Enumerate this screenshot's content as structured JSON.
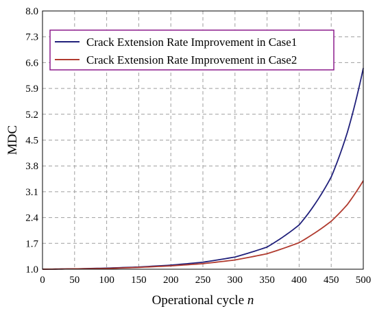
{
  "chart_data": {
    "type": "line",
    "title": "",
    "xlabel": "Operational cycle",
    "xlabel_var": "n",
    "ylabel": "MDC",
    "xlim": [
      0,
      500
    ],
    "ylim": [
      1.0,
      8.0
    ],
    "x_ticks": [
      0,
      50,
      100,
      150,
      200,
      250,
      300,
      350,
      400,
      450,
      500
    ],
    "y_ticks": [
      1.0,
      1.7,
      2.4,
      3.1,
      3.8,
      4.5,
      5.2,
      5.9,
      6.6,
      7.3,
      8.0
    ],
    "y_tick_labels": [
      "1.0",
      "1.7",
      "2.4",
      "3.1",
      "3.8",
      "4.5",
      "5.2",
      "5.9",
      "6.6",
      "7.3",
      "8.0"
    ],
    "grid": true,
    "legend_position": "top-left",
    "series": [
      {
        "name": "Crack Extension Rate Improvement in Case1",
        "color": "#1f1f7a",
        "x": [
          0,
          50,
          100,
          150,
          200,
          250,
          300,
          350,
          400,
          450,
          475,
          500
        ],
        "y": [
          1.0,
          1.01,
          1.03,
          1.06,
          1.11,
          1.19,
          1.33,
          1.6,
          2.2,
          3.5,
          4.7,
          6.45
        ]
      },
      {
        "name": "Crack Extension Rate Improvement in Case2",
        "color": "#b03a2e",
        "x": [
          0,
          50,
          100,
          150,
          200,
          250,
          300,
          350,
          400,
          450,
          475,
          500
        ],
        "y": [
          1.0,
          1.01,
          1.02,
          1.05,
          1.09,
          1.15,
          1.25,
          1.42,
          1.72,
          2.3,
          2.75,
          3.4
        ]
      }
    ]
  }
}
